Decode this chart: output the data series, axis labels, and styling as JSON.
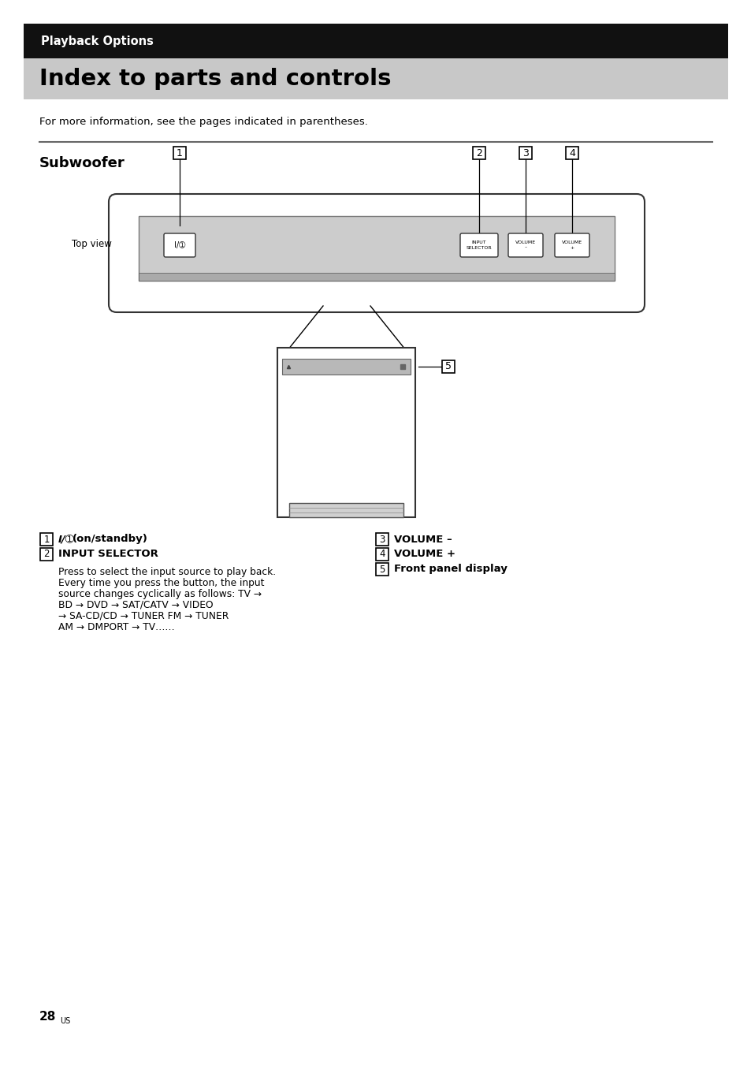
{
  "page_bg": "#ffffff",
  "header_bar_color": "#111111",
  "header_text": "Playback Options",
  "header_text_color": "#ffffff",
  "title_bar_color": "#c8c8c8",
  "title_text": "Index to parts and controls",
  "title_text_color": "#000000",
  "subtitle": "Subwoofer",
  "body_intro": "For more information, see the pages indicated in parentheses.",
  "top_view_label": "Top view",
  "page_num": "28",
  "page_suffix": "US",
  "desc2_body_lines": [
    "Press to select the input source to play back.",
    "Every time you press the button, the input",
    "source changes cyclically as follows: TV →",
    "BD → DVD → SAT/CATV → VIDEO",
    "→ SA-CD/CD → TUNER FM → TUNER",
    "AM → DMPORT → TV……"
  ]
}
